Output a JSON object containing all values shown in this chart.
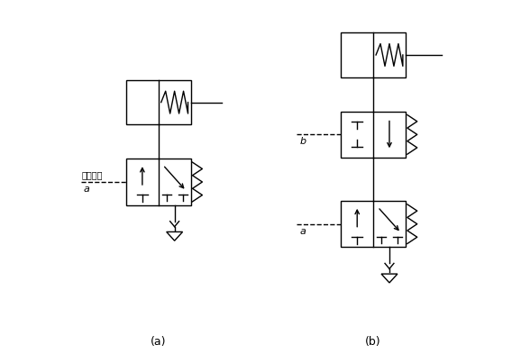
{
  "fig_width": 5.68,
  "fig_height": 4.03,
  "dpi": 100,
  "bg_color": "#ffffff",
  "line_color": "#000000",
  "label_a": "(a)",
  "label_b": "(b)",
  "text_control": "控制信号"
}
